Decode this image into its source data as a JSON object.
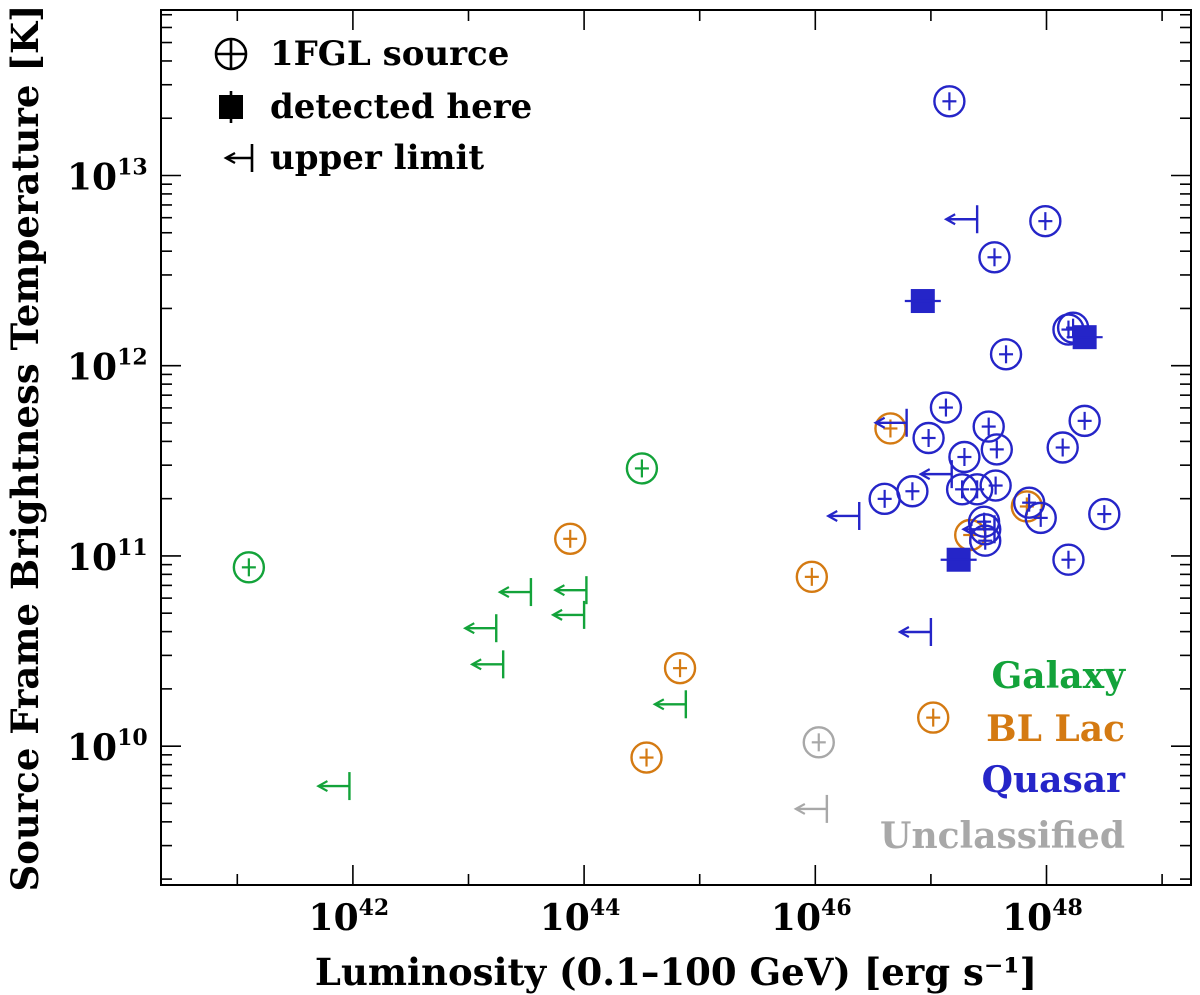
{
  "chart_data": {
    "type": "scatter",
    "xlabel": "Luminosity (0.1–100 GeV) [erg s⁻¹]",
    "ylabel": "Source Frame Brightness Temperature [K]",
    "x_scale": "log",
    "y_scale": "log",
    "xlim_log10": [
      40.34,
      49.25
    ],
    "ylim_log10": [
      9.27,
      13.87
    ],
    "x_ticks": [
      {
        "base": "10",
        "exp": "42",
        "log10": 42
      },
      {
        "base": "10",
        "exp": "44",
        "log10": 44
      },
      {
        "base": "10",
        "exp": "46",
        "log10": 46
      },
      {
        "base": "10",
        "exp": "48",
        "log10": 48
      }
    ],
    "y_ticks": [
      {
        "base": "10",
        "exp": "10",
        "log10": 10
      },
      {
        "base": "10",
        "exp": "11",
        "log10": 11
      },
      {
        "base": "10",
        "exp": "12",
        "log10": 12
      },
      {
        "base": "10",
        "exp": "13",
        "log10": 13
      }
    ],
    "grid": false,
    "legend": {
      "placement": "top-left",
      "items": [
        {
          "marker": "circle-cross",
          "label": "1FGL source"
        },
        {
          "marker": "filled-square",
          "label": "detected here"
        },
        {
          "marker": "upper-limit",
          "label": "upper limit"
        }
      ]
    },
    "class_labels": {
      "placement": "bottom-right",
      "items": [
        {
          "name": "Galaxy",
          "color": "#13a33a"
        },
        {
          "name": "BL Lac",
          "color": "#d47a12"
        },
        {
          "name": "Quasar",
          "color": "#2525c8"
        },
        {
          "name": "Unclassified",
          "color": "#a8a8a8"
        }
      ]
    },
    "series": [
      {
        "name": "Galaxy",
        "color": "#13a33a",
        "sources": [
          {
            "logL": 41.1,
            "logT": 10.94
          },
          {
            "logL": 44.5,
            "logT": 11.46
          }
        ],
        "upper_limits": [
          {
            "logL": 43.3,
            "logT": 10.43
          },
          {
            "logL": 43.54,
            "logT": 10.81
          },
          {
            "logL": 44.0,
            "logT": 10.69
          },
          {
            "logL": 44.02,
            "logT": 10.82
          },
          {
            "logL": 44.88,
            "logT": 10.22
          },
          {
            "logL": 41.97,
            "logT": 9.79
          },
          {
            "logL": 43.24,
            "logT": 10.62
          }
        ]
      },
      {
        "name": "BL Lac",
        "color": "#d47a12",
        "sources": [
          {
            "logL": 43.88,
            "logT": 11.09
          },
          {
            "logL": 44.83,
            "logT": 10.41
          },
          {
            "logL": 44.54,
            "logT": 9.94
          },
          {
            "logL": 45.97,
            "logT": 10.89
          },
          {
            "logL": 46.65,
            "logT": 11.67
          },
          {
            "logL": 47.34,
            "logT": 11.11
          },
          {
            "logL": 47.83,
            "logT": 11.26
          },
          {
            "logL": 47.02,
            "logT": 10.15
          }
        ],
        "upper_limits": []
      },
      {
        "name": "Quasar",
        "color": "#2525c8",
        "sources": [
          {
            "logL": 47.16,
            "logT": 13.39
          },
          {
            "logL": 47.99,
            "logT": 12.76
          },
          {
            "logL": 47.55,
            "logT": 12.57
          },
          {
            "logL": 48.23,
            "logT": 12.2
          },
          {
            "logL": 48.19,
            "logT": 12.19
          },
          {
            "logL": 47.65,
            "logT": 12.06
          },
          {
            "logL": 47.13,
            "logT": 11.78
          },
          {
            "logL": 46.98,
            "logT": 11.62
          },
          {
            "logL": 47.5,
            "logT": 11.68
          },
          {
            "logL": 48.33,
            "logT": 11.71
          },
          {
            "logL": 47.57,
            "logT": 11.56
          },
          {
            "logL": 48.14,
            "logT": 11.57
          },
          {
            "logL": 47.29,
            "logT": 11.52
          },
          {
            "logL": 47.27,
            "logT": 11.35
          },
          {
            "logL": 47.4,
            "logT": 11.35
          },
          {
            "logL": 47.56,
            "logT": 11.37
          },
          {
            "logL": 46.6,
            "logT": 11.3
          },
          {
            "logL": 46.84,
            "logT": 11.34
          },
          {
            "logL": 47.85,
            "logT": 11.28
          },
          {
            "logL": 47.95,
            "logT": 11.2
          },
          {
            "logL": 48.5,
            "logT": 11.22
          },
          {
            "logL": 47.46,
            "logT": 11.18
          },
          {
            "logL": 47.47,
            "logT": 11.14
          },
          {
            "logL": 47.47,
            "logT": 11.08
          },
          {
            "logL": 48.19,
            "logT": 10.98
          }
        ],
        "detections": [
          {
            "logL": 46.93,
            "logT": 12.34
          },
          {
            "logL": 48.33,
            "logT": 12.15
          },
          {
            "logL": 47.24,
            "logT": 10.98
          }
        ],
        "upper_limits": [
          {
            "logL": 47.4,
            "logT": 12.77
          },
          {
            "logL": 46.79,
            "logT": 11.7
          },
          {
            "logL": 47.18,
            "logT": 11.43
          },
          {
            "logL": 46.38,
            "logT": 11.21
          },
          {
            "logL": 47.0,
            "logT": 10.6
          },
          {
            "logL": 47.55,
            "logT": 11.14
          }
        ]
      },
      {
        "name": "Unclassified",
        "color": "#a8a8a8",
        "sources": [
          {
            "logL": 46.03,
            "logT": 10.02
          }
        ],
        "upper_limits": [
          {
            "logL": 46.1,
            "logT": 9.67
          }
        ]
      }
    ]
  }
}
